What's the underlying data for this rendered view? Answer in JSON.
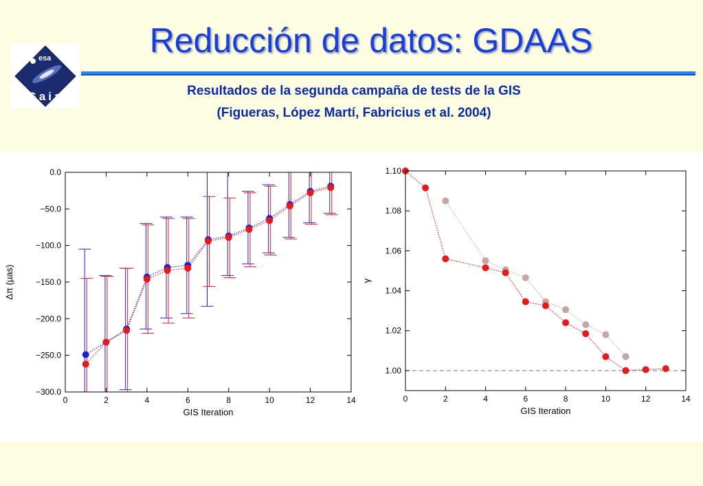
{
  "page": {
    "title": "Reducción de datos: GDAAS",
    "subtitle_line1": "Resultados de la segunda campaña de tests de la GIS",
    "subtitle_line2": "(Figueras, López Martí, Fabricius et al. 2004)",
    "logo": {
      "top_text": "esa",
      "word": "Gaia",
      "icon": "gaia-mission-logo"
    },
    "colors": {
      "title": "#1a3fd6",
      "subtitle": "#0b2aa8",
      "rule": "#1a8cf0",
      "background": "#fdfde2",
      "red_series": "#e41a1c",
      "blue_series": "#1f1fcf",
      "gray_series": "#c4a7a1"
    }
  },
  "chart_data": [
    {
      "type": "scatter",
      "xlabel": "GIS Iteration",
      "ylabel": "Δπ (µas)",
      "xlim": [
        0,
        14
      ],
      "ylim": [
        -300,
        0
      ],
      "x_ticks": [
        "0",
        "2",
        "4",
        "6",
        "8",
        "10",
        "12",
        "14"
      ],
      "y_ticks": [
        "0.0",
        "−50.0",
        "−100.0",
        "−150.0",
        "−200.0",
        "−250.0",
        "−300.0"
      ],
      "series": [
        {
          "color": "blue",
          "x": [
            1,
            2,
            3,
            4,
            5,
            6,
            7,
            8,
            9,
            10,
            11,
            12,
            13
          ],
          "y": [
            -249,
            -232,
            -214,
            -143,
            -130,
            -127,
            -92,
            -87,
            -76,
            -63,
            -44,
            -26,
            -19
          ],
          "err_low": [
            -300,
            -300,
            -297,
            -214,
            -199,
            -193,
            -183,
            -141,
            -125,
            -110,
            -89,
            -69,
            -56
          ],
          "err_high": [
            -105,
            -141,
            -131,
            -70,
            -61,
            -61,
            0,
            0,
            -26,
            -17,
            0,
            0,
            0
          ]
        },
        {
          "color": "red",
          "x": [
            1,
            2,
            3,
            4,
            5,
            6,
            7,
            8,
            9,
            10,
            11,
            12,
            13
          ],
          "y": [
            -262,
            -232,
            -216,
            -146,
            -134,
            -131,
            -94,
            -89,
            -78,
            -66,
            -46,
            -28,
            -21
          ],
          "err_low": [
            -300,
            -300,
            -300,
            -220,
            -206,
            -199,
            -156,
            -144,
            -129,
            -113,
            -91,
            -71,
            -58
          ],
          "err_high": [
            -145,
            -142,
            -131,
            -72,
            -63,
            -63,
            -33,
            -35,
            -28,
            -19,
            0,
            0,
            0
          ]
        }
      ]
    },
    {
      "type": "scatter",
      "xlabel": "GIS Iteration",
      "ylabel": "γ",
      "xlim": [
        0,
        14
      ],
      "ylim": [
        0.99,
        1.1
      ],
      "x_ticks": [
        "0",
        "2",
        "4",
        "6",
        "8",
        "10",
        "12",
        "14"
      ],
      "y_ticks": [
        "1.10",
        "1.08",
        "1.06",
        "1.04",
        "1.02",
        "1.00"
      ],
      "reference_line": 1.0,
      "series": [
        {
          "color": "gray",
          "x": [
            2,
            4,
            5,
            6,
            7,
            8,
            9,
            10,
            11
          ],
          "y": [
            1.085,
            1.055,
            1.0505,
            1.0465,
            1.0345,
            1.0305,
            1.023,
            1.018,
            1.007
          ]
        },
        {
          "color": "red",
          "x": [
            0,
            1,
            2,
            4,
            5,
            6,
            7,
            8,
            9,
            10,
            11,
            12,
            13
          ],
          "y": [
            1.1,
            1.0915,
            1.056,
            1.0515,
            1.049,
            1.0345,
            1.0325,
            1.024,
            1.0185,
            1.007,
            1.0,
            1.0005,
            1.001
          ]
        }
      ]
    }
  ]
}
